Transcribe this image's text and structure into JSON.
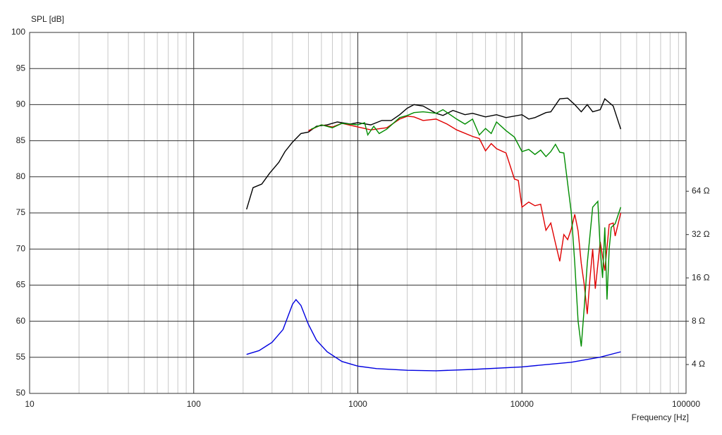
{
  "chart_data": {
    "type": "line",
    "y_label": "SPL [dB]",
    "x_label": "Frequency [Hz]",
    "x_scale": "log",
    "y2_scale": "log",
    "grid": true,
    "xlim": [
      10,
      100000
    ],
    "xticks": [
      10,
      100,
      1000,
      10000,
      100000
    ],
    "xminorticks": [
      20,
      30,
      40,
      50,
      60,
      70,
      80,
      90,
      200,
      300,
      400,
      500,
      600,
      700,
      800,
      900,
      2000,
      3000,
      4000,
      5000,
      6000,
      7000,
      8000,
      9000,
      20000,
      30000,
      40000,
      50000,
      60000,
      70000,
      80000,
      90000
    ],
    "ylim": [
      50,
      100
    ],
    "yticks": [
      50,
      55,
      60,
      65,
      70,
      75,
      80,
      85,
      90,
      95,
      100
    ],
    "y2lim": [
      2.52,
      812
    ],
    "y2ticks": [
      {
        "value": 4,
        "label": "4 Ω"
      },
      {
        "value": 8,
        "label": "8 Ω"
      },
      {
        "value": 16,
        "label": "16 Ω"
      },
      {
        "value": 32,
        "label": "32 Ω"
      },
      {
        "value": 64,
        "label": "64 Ω"
      }
    ],
    "series": [
      {
        "color": "#000000",
        "x": [
          210,
          230,
          260,
          290,
          330,
          360,
          400,
          450,
          500,
          560,
          650,
          750,
          900,
          1000,
          1200,
          1400,
          1600,
          1800,
          2000,
          2200,
          2500,
          3000,
          3300,
          3800,
          4500,
          5000,
          6000,
          7000,
          8000,
          10000,
          11000,
          12000,
          14000,
          15000,
          17000,
          19000,
          21000,
          23000,
          25000,
          27000,
          30000,
          32000,
          36000,
          40000
        ],
        "values": [
          75.5,
          78.5,
          79,
          80.5,
          82,
          83.5,
          84.8,
          86,
          86.2,
          87,
          87.2,
          87.6,
          87.3,
          87.5,
          87.2,
          87.8,
          87.8,
          88.6,
          89.5,
          90,
          89.8,
          88.8,
          88.5,
          89.2,
          88.6,
          88.8,
          88.3,
          88.6,
          88.2,
          88.6,
          88,
          88.2,
          88.9,
          89,
          90.8,
          90.9,
          90,
          89,
          90,
          89,
          89.3,
          90.8,
          89.8,
          86.6
        ]
      },
      {
        "color": "#e00000",
        "x": [
          500,
          600,
          700,
          800,
          1000,
          1200,
          1500,
          1800,
          2000,
          2200,
          2500,
          3000,
          3500,
          4000,
          5000,
          5500,
          6000,
          6500,
          7000,
          8000,
          9000,
          9500,
          10000,
          11000,
          12000,
          13000,
          14000,
          15000,
          16000,
          17000,
          18000,
          19000,
          20000,
          21000,
          22000,
          23000,
          24000,
          25000,
          26000,
          27000,
          28000,
          30000,
          32000,
          34000,
          36000,
          37000,
          40000
        ],
        "values": [
          86.4,
          87.2,
          86.9,
          87.4,
          86.9,
          86.5,
          86.8,
          88,
          88.4,
          88.3,
          87.8,
          88,
          87.3,
          86.5,
          85.6,
          85.3,
          83.6,
          84.6,
          83.9,
          83.3,
          79.7,
          79.5,
          75.8,
          76.5,
          76,
          76.2,
          72.6,
          73.6,
          70.8,
          68.3,
          72,
          71.3,
          72.8,
          74.8,
          72.5,
          68,
          65,
          61,
          66,
          70,
          64.5,
          71,
          67,
          73.4,
          73.6,
          71.8,
          75
        ]
      },
      {
        "color": "#008c00",
        "x": [
          520,
          600,
          700,
          800,
          1000,
          1100,
          1150,
          1250,
          1350,
          1500,
          1800,
          2000,
          2200,
          2500,
          3000,
          3300,
          4000,
          4500,
          5000,
          5500,
          6000,
          6500,
          7000,
          8000,
          9000,
          10000,
          11000,
          12000,
          13000,
          14000,
          15000,
          16000,
          17000,
          18000,
          20000,
          21000,
          22000,
          23000,
          24000,
          25000,
          27000,
          29000,
          30000,
          31000,
          32000,
          33000,
          34000,
          35000,
          37000,
          40000
        ],
        "values": [
          86.6,
          87.2,
          86.8,
          87.4,
          87.2,
          87.5,
          85.8,
          87,
          86,
          86.6,
          88.2,
          88.5,
          88.9,
          89,
          88.8,
          89.3,
          88,
          87.3,
          88,
          85.8,
          86.7,
          86,
          87.6,
          86.4,
          85.5,
          83.5,
          83.8,
          83.1,
          83.7,
          82.8,
          83.5,
          84.5,
          83.4,
          83.3,
          75,
          68,
          60,
          56.5,
          62,
          68,
          75.8,
          76.6,
          70,
          66,
          73,
          63,
          70,
          73,
          73.5,
          75.8
        ]
      },
      {
        "color": "#0000e0",
        "axis": "y2",
        "x": [
          210,
          250,
          300,
          350,
          400,
          420,
          450,
          500,
          560,
          650,
          800,
          1000,
          1300,
          2000,
          3000,
          5000,
          10000,
          20000,
          30000,
          40000
        ],
        "values": [
          4.7,
          5.0,
          5.7,
          7.0,
          10.5,
          11.3,
          10.3,
          7.6,
          5.9,
          4.9,
          4.2,
          3.9,
          3.75,
          3.65,
          3.62,
          3.7,
          3.85,
          4.15,
          4.5,
          4.9
        ]
      }
    ]
  }
}
